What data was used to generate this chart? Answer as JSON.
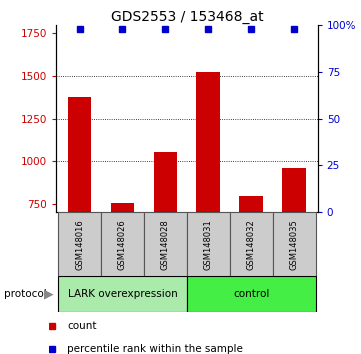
{
  "title": "GDS2553 / 153468_at",
  "samples": [
    "GSM148016",
    "GSM148026",
    "GSM148028",
    "GSM148031",
    "GSM148032",
    "GSM148035"
  ],
  "counts": [
    1375,
    755,
    1055,
    1525,
    795,
    960
  ],
  "percentiles": [
    98,
    98,
    98,
    98,
    98,
    98
  ],
  "ylim_left": [
    700,
    1800
  ],
  "ylim_right": [
    0,
    100
  ],
  "yticks_left": [
    750,
    1000,
    1250,
    1500,
    1750
  ],
  "yticks_right": [
    0,
    25,
    50,
    75,
    100
  ],
  "grid_values": [
    1000,
    1250,
    1500
  ],
  "bar_color": "#cc0000",
  "dot_color": "#0000cc",
  "bar_width": 0.55,
  "groups": [
    {
      "label": "LARK overexpression",
      "indices": [
        0,
        1,
        2
      ],
      "color": "#aaeaaa"
    },
    {
      "label": "control",
      "indices": [
        3,
        4,
        5
      ],
      "color": "#44ee44"
    }
  ],
  "protocol_label": "protocol",
  "legend_count_label": "count",
  "legend_percentile_label": "percentile rank within the sample",
  "sample_box_color": "#cccccc",
  "sample_box_edge": "#555555",
  "title_fontsize": 10,
  "tick_fontsize": 7.5,
  "label_fontsize": 7.5
}
